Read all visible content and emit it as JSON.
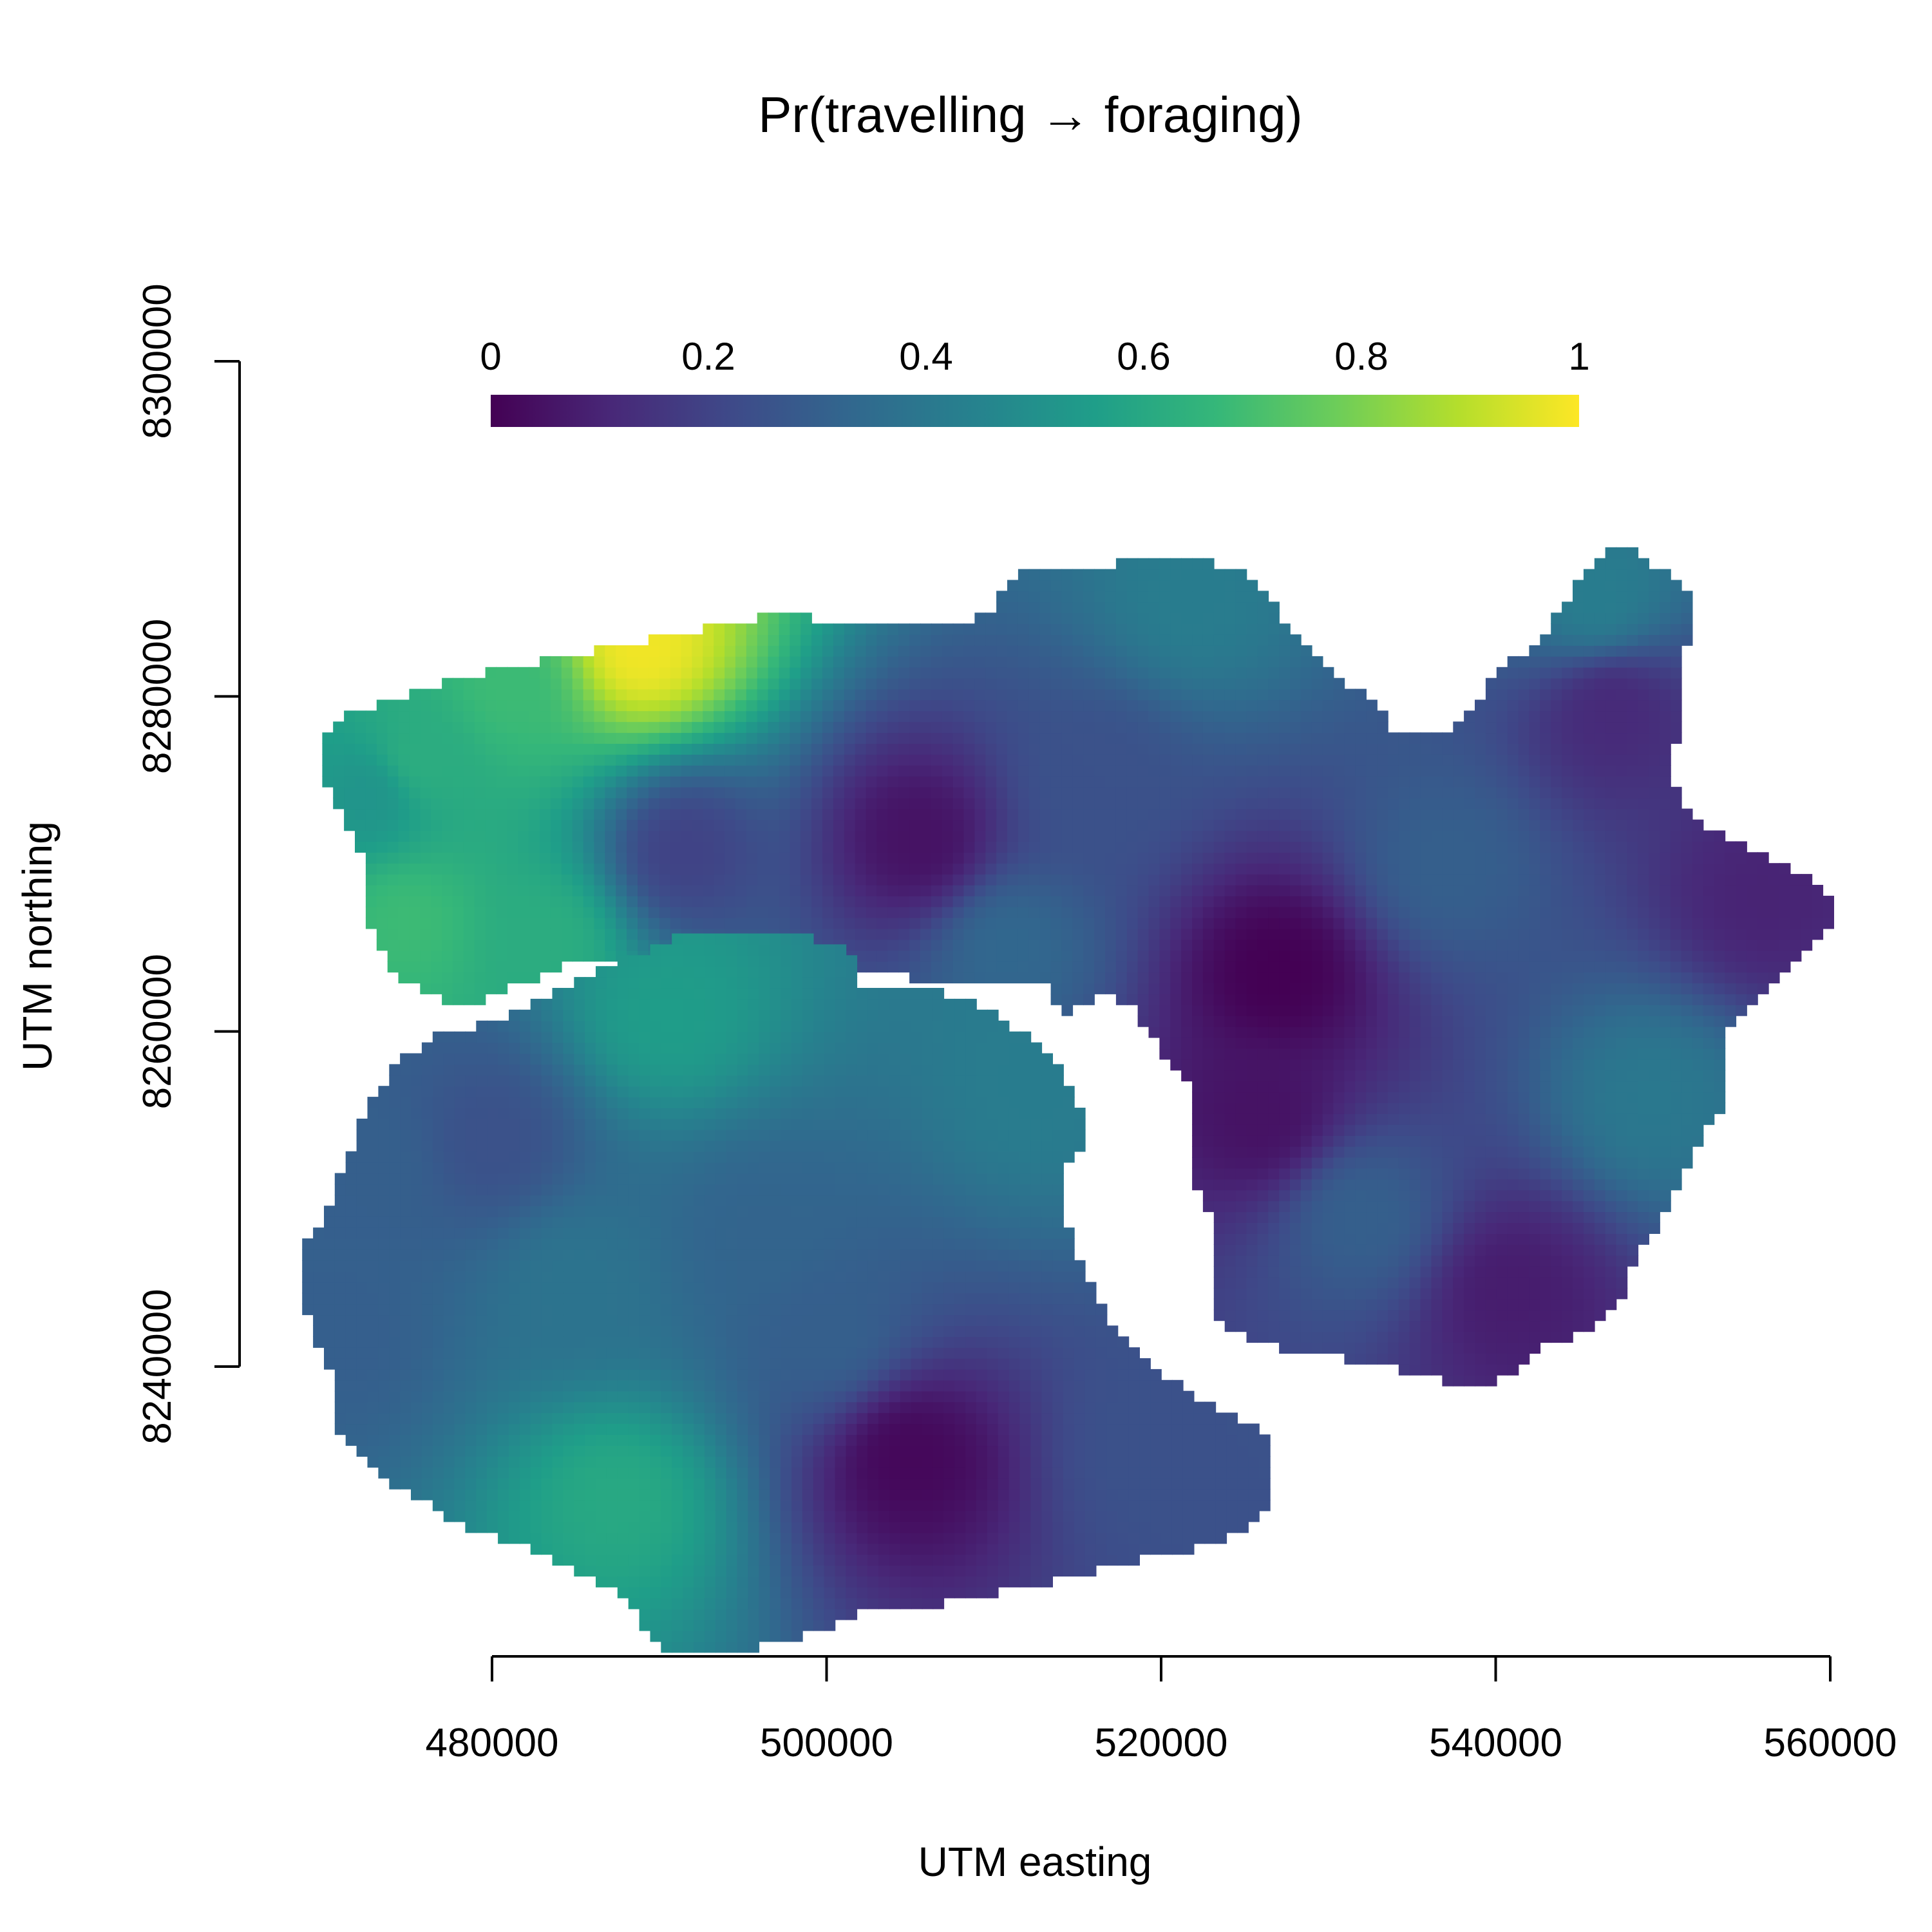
{
  "chart_data": {
    "type": "heatmap",
    "title": "Pr(travelling → foraging)",
    "xlabel": "UTM easting",
    "ylabel": "UTM northing",
    "xlim": [
      480000,
      560000
    ],
    "ylim": [
      8240000,
      8300000
    ],
    "x_ticks": [
      480000,
      500000,
      520000,
      540000,
      560000
    ],
    "x_tick_labels": [
      "480000",
      "500000",
      "520000",
      "540000",
      "560000"
    ],
    "y_ticks": [
      8240000,
      8260000,
      8280000,
      8300000
    ],
    "y_tick_labels": [
      "8240000",
      "8260000",
      "8280000",
      "8300000"
    ],
    "colorbar": {
      "range": [
        0,
        1
      ],
      "ticks": [
        0,
        0.2,
        0.4,
        0.6,
        0.8,
        1
      ],
      "tick_labels": [
        "0",
        "0.2",
        "0.4",
        "0.6",
        "0.8",
        "1"
      ],
      "palette": "viridis",
      "colors": [
        "#440154",
        "#482878",
        "#3E4A89",
        "#31688E",
        "#26828E",
        "#1F9E89",
        "#35B779",
        "#6DCD59",
        "#B4DE2C",
        "#FDE725"
      ],
      "placement": "top"
    },
    "grid": false,
    "regions": [
      {
        "name": "northern",
        "boundary": [
          [
            470500,
            8277000
          ],
          [
            470600,
            8278000
          ],
          [
            478000,
            8280500
          ],
          [
            487000,
            8282300
          ],
          [
            497000,
            8284200
          ],
          [
            508000,
            8283400
          ],
          [
            510000,
            8284500
          ],
          [
            511500,
            8287000
          ],
          [
            516000,
            8287200
          ],
          [
            522000,
            8287500
          ],
          [
            525000,
            8287000
          ],
          [
            527000,
            8284000
          ],
          [
            529000,
            8282000
          ],
          [
            532500,
            8279000
          ],
          [
            534000,
            8277000
          ],
          [
            537000,
            8277000
          ],
          [
            540500,
            8281000
          ],
          [
            543500,
            8283500
          ],
          [
            546000,
            8287500
          ],
          [
            547000,
            8288500
          ],
          [
            548500,
            8288000
          ],
          [
            550500,
            8286500
          ],
          [
            551500,
            8285000
          ],
          [
            550500,
            8282500
          ],
          [
            550500,
            8279000
          ],
          [
            549500,
            8275000
          ],
          [
            550500,
            8274000
          ],
          [
            551500,
            8272000
          ],
          [
            554500,
            8270500
          ],
          [
            557000,
            8269200
          ],
          [
            559700,
            8268000
          ],
          [
            559700,
            8266300
          ],
          [
            558000,
            8264800
          ],
          [
            556000,
            8263000
          ],
          [
            555000,
            8261500
          ],
          [
            553200,
            8260500
          ],
          [
            553200,
            8256000
          ],
          [
            551500,
            8253200
          ],
          [
            550500,
            8251200
          ],
          [
            549500,
            8249300
          ],
          [
            547500,
            8246000
          ],
          [
            546500,
            8243200
          ],
          [
            543200,
            8242000
          ],
          [
            541000,
            8240000
          ],
          [
            538000,
            8239500
          ],
          [
            534000,
            8240500
          ],
          [
            530000,
            8241300
          ],
          [
            526000,
            8242000
          ],
          [
            523700,
            8243300
          ],
          [
            523500,
            8249000
          ],
          [
            522800,
            8250600
          ],
          [
            522500,
            8255500
          ],
          [
            522000,
            8257400
          ],
          [
            520700,
            8258700
          ],
          [
            519800,
            8260300
          ],
          [
            518500,
            8262000
          ],
          [
            516500,
            8262800
          ],
          [
            514200,
            8261500
          ],
          [
            513800,
            8263500
          ],
          [
            508000,
            8263500
          ],
          [
            503700,
            8264000
          ],
          [
            500000,
            8264000
          ],
          [
            495000,
            8264500
          ],
          [
            490000,
            8265000
          ],
          [
            484000,
            8264500
          ],
          [
            480500,
            8263000
          ],
          [
            478000,
            8262000
          ],
          [
            474500,
            8264000
          ],
          [
            473400,
            8266500
          ],
          [
            473300,
            8270000
          ],
          [
            472000,
            8272500
          ],
          [
            470500,
            8275000
          ]
        ],
        "hotspots": [
          {
            "x": 489000,
            "y": 8283000,
            "value": 0.98
          },
          {
            "x": 481000,
            "y": 8280500,
            "value": 0.68
          },
          {
            "x": 476000,
            "y": 8276500,
            "value": 0.62
          },
          {
            "x": 475000,
            "y": 8266500,
            "value": 0.68
          },
          {
            "x": 483000,
            "y": 8265500,
            "value": 0.62
          },
          {
            "x": 472500,
            "y": 8274000,
            "value": 0.52
          },
          {
            "x": 491500,
            "y": 8270800,
            "value": 0.2
          },
          {
            "x": 505500,
            "y": 8271500,
            "value": 0.05
          },
          {
            "x": 516000,
            "y": 8275000,
            "value": 0.25
          },
          {
            "x": 527000,
            "y": 8263500,
            "value": 0.0
          },
          {
            "x": 526000,
            "y": 8255000,
            "value": 0.05
          },
          {
            "x": 541000,
            "y": 8244500,
            "value": 0.08
          },
          {
            "x": 547000,
            "y": 8279000,
            "value": 0.12
          },
          {
            "x": 556000,
            "y": 8268000,
            "value": 0.1
          },
          {
            "x": 537000,
            "y": 8270000,
            "value": 0.3
          },
          {
            "x": 549500,
            "y": 8256000,
            "value": 0.4
          },
          {
            "x": 546000,
            "y": 8286000,
            "value": 0.42
          },
          {
            "x": 522000,
            "y": 8286000,
            "value": 0.42
          },
          {
            "x": 511000,
            "y": 8265000,
            "value": 0.33
          },
          {
            "x": 532000,
            "y": 8249000,
            "value": 0.3
          }
        ]
      },
      {
        "name": "southern",
        "boundary": [
          [
            471000,
            8249500
          ],
          [
            471200,
            8251000
          ],
          [
            472500,
            8253000
          ],
          [
            473000,
            8255000
          ],
          [
            475000,
            8258000
          ],
          [
            476500,
            8259000
          ],
          [
            480000,
            8260000
          ],
          [
            483500,
            8261500
          ],
          [
            487500,
            8263500
          ],
          [
            490500,
            8264800
          ],
          [
            493000,
            8265500
          ],
          [
            495000,
            8265500
          ],
          [
            499000,
            8265000
          ],
          [
            501000,
            8264200
          ],
          [
            501500,
            8262000
          ],
          [
            506000,
            8262000
          ],
          [
            509000,
            8261000
          ],
          [
            511500,
            8259500
          ],
          [
            513000,
            8258000
          ],
          [
            514000,
            8256500
          ],
          [
            514600,
            8255000
          ],
          [
            514600,
            8253300
          ],
          [
            513600,
            8252000
          ],
          [
            513600,
            8250000
          ],
          [
            514000,
            8247500
          ],
          [
            515000,
            8245500
          ],
          [
            516000,
            8243000
          ],
          [
            517500,
            8241500
          ],
          [
            520000,
            8239000
          ],
          [
            523000,
            8237000
          ],
          [
            526000,
            8235500
          ],
          [
            526000,
            8231500
          ],
          [
            524000,
            8230300
          ],
          [
            520500,
            8229500
          ],
          [
            516500,
            8228500
          ],
          [
            512000,
            8227500
          ],
          [
            507000,
            8226500
          ],
          [
            503000,
            8226200
          ],
          [
            500500,
            8225300
          ],
          [
            498000,
            8224200
          ],
          [
            494000,
            8223600
          ],
          [
            490000,
            8223600
          ],
          [
            489000,
            8225500
          ],
          [
            487000,
            8227500
          ],
          [
            483000,
            8229500
          ],
          [
            479000,
            8230800
          ],
          [
            475000,
            8233000
          ],
          [
            472500,
            8234800
          ],
          [
            471000,
            8237000
          ],
          [
            471000,
            8240000
          ],
          [
            470000,
            8241800
          ],
          [
            469300,
            8244500
          ],
          [
            469500,
            8247500
          ]
        ],
        "hotspots": [
          {
            "x": 505000,
            "y": 8234500,
            "value": 0.02
          },
          {
            "x": 487500,
            "y": 8232000,
            "value": 0.6
          },
          {
            "x": 490500,
            "y": 8261000,
            "value": 0.55
          },
          {
            "x": 473000,
            "y": 8252000,
            "value": 0.3
          },
          {
            "x": 480000,
            "y": 8253500,
            "value": 0.25
          },
          {
            "x": 471000,
            "y": 8242000,
            "value": 0.3
          },
          {
            "x": 512500,
            "y": 8257000,
            "value": 0.42
          },
          {
            "x": 496000,
            "y": 8248000,
            "value": 0.32
          },
          {
            "x": 520000,
            "y": 8235000,
            "value": 0.25
          },
          {
            "x": 500000,
            "y": 8242000,
            "value": 0.3
          },
          {
            "x": 485000,
            "y": 8245000,
            "value": 0.38
          }
        ]
      }
    ]
  }
}
